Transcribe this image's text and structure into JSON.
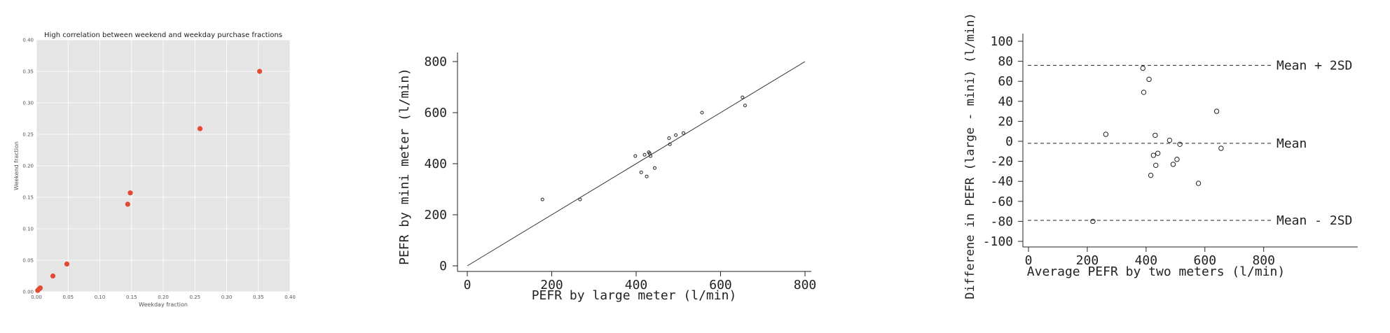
{
  "chart_data": [
    {
      "type": "scatter",
      "title": "High correlation between weekend and weekday purchase fractions",
      "xlabel": "Weekday fraction",
      "ylabel": "Weekend fraction",
      "xlim": [
        0,
        0.4
      ],
      "ylim": [
        0,
        0.4
      ],
      "grid": true,
      "background": "#e5e5e5",
      "marker_color": "#e24a33",
      "xticks": [
        "0.00",
        "0.05",
        "0.10",
        "0.15",
        "0.20",
        "0.25",
        "0.30",
        "0.35",
        "0.40"
      ],
      "yticks": [
        "0.00",
        "0.05",
        "0.10",
        "0.15",
        "0.20",
        "0.25",
        "0.30",
        "0.35",
        "0.40"
      ],
      "series": [
        {
          "x": [
            0.002,
            0.004,
            0.005,
            0.006,
            0.026,
            0.048,
            0.144,
            0.148,
            0.258,
            0.352
          ],
          "y": [
            0.002,
            0.004,
            0.005,
            0.006,
            0.025,
            0.044,
            0.139,
            0.157,
            0.259,
            0.35
          ]
        }
      ]
    },
    {
      "type": "scatter",
      "xlabel": "PEFR by large meter (l/min)",
      "ylabel": "PEFR by mini meter (l/min)",
      "xlim": [
        0,
        800
      ],
      "ylim": [
        0,
        800
      ],
      "xticks": [
        "0",
        "200",
        "400",
        "600",
        "800"
      ],
      "yticks": [
        "0",
        "200",
        "400",
        "600",
        "800"
      ],
      "line_of_equality": [
        [
          0,
          0
        ],
        [
          800,
          800
        ]
      ],
      "series": [
        {
          "x": [
            178,
            267,
            398,
            412,
            420,
            425,
            430,
            432,
            434,
            444,
            478,
            480,
            494,
            512,
            556,
            652,
            658
          ],
          "y": [
            260,
            260,
            430,
            366,
            435,
            350,
            445,
            440,
            430,
            383,
            500,
            476,
            512,
            520,
            600,
            660,
            628
          ]
        }
      ]
    },
    {
      "type": "scatter",
      "xlabel": "Average PEFR by two meters (l/min)",
      "ylabel": "Differene in PEFR (large - mini) (l/min)",
      "xlim": [
        0,
        1120
      ],
      "ylim": [
        -100,
        100
      ],
      "xticks": [
        "0",
        "200",
        "400",
        "600",
        "800"
      ],
      "yticks": [
        "100",
        "80",
        "60",
        "40",
        "20",
        "0",
        "-20",
        "-40",
        "-60",
        "-80",
        "-100"
      ],
      "reference_lines": [
        {
          "label": "Mean + 2SD",
          "value": 76
        },
        {
          "label": "Mean",
          "value": -2
        },
        {
          "label": "Mean - 2SD",
          "value": -79
        }
      ],
      "series": [
        {
          "x": [
            219,
            263,
            389,
            392,
            410,
            416,
            425,
            431,
            433,
            440,
            480,
            492,
            505,
            515,
            578,
            640,
            655
          ],
          "y": [
            -80,
            7,
            73,
            49,
            62,
            -34,
            -14,
            6,
            -24,
            -12,
            1,
            -23,
            -18,
            -3,
            -42,
            30,
            -7
          ]
        }
      ]
    }
  ]
}
